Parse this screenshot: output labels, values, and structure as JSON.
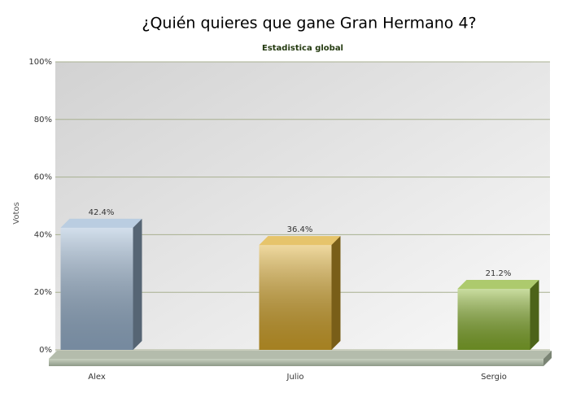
{
  "chart_data": {
    "type": "bar3d",
    "title": "¿Quién quieres que gane Gran Hermano 4?",
    "subtitle": "Estadistica global",
    "y_label": "Votos",
    "categories": [
      "Alex",
      "Julio",
      "Sergio"
    ],
    "values": [
      42.4,
      36.4,
      21.2
    ],
    "value_labels": [
      "42.4%",
      "36.4%",
      "21.2%"
    ],
    "colors": [
      "#9db8d4",
      "#dcab2c",
      "#8ab42e"
    ],
    "ylim": [
      0,
      100
    ],
    "yticks": [
      {
        "value": 0,
        "label": "0%"
      },
      {
        "value": 20,
        "label": "20%"
      },
      {
        "value": 40,
        "label": "40%"
      },
      {
        "value": 60,
        "label": "60%"
      },
      {
        "value": 80,
        "label": "80%"
      },
      {
        "value": 100,
        "label": "100%"
      }
    ],
    "grid": true
  }
}
